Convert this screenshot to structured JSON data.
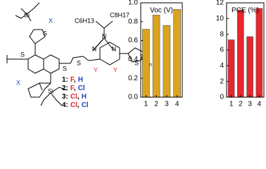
{
  "structure": {
    "labels": [
      "Si",
      "X",
      "Si",
      "X",
      "S",
      "S",
      "S",
      "S",
      "S",
      "N",
      "N",
      "N",
      "Y",
      "Y",
      "C8H17",
      "C6H13",
      "n"
    ],
    "compounds": [
      {
        "number": "1:",
        "y": "F",
        "sep": ",",
        "x": "H"
      },
      {
        "number": "2:",
        "y": "F",
        "sep": ",",
        "x": "Cl"
      },
      {
        "number": "3:",
        "y": "Cl",
        "sep": ",",
        "x": "H"
      },
      {
        "number": "4:",
        "y": "Cl",
        "sep": ",",
        "x": "Cl"
      }
    ]
  },
  "chart_data": [
    {
      "type": "bar",
      "title": "Voc (V)",
      "categories": [
        "1",
        "2",
        "3",
        "4"
      ],
      "values": [
        0.72,
        0.87,
        0.76,
        0.93
      ],
      "color": "#dba41f",
      "ylim": [
        0,
        1
      ],
      "yticks": [
        {
          "value": 0,
          "label": "0.0"
        },
        0.2,
        0.4,
        0.6,
        0.8,
        {
          "value": 1,
          "label": "1.0"
        }
      ]
    },
    {
      "type": "bar",
      "title": "PCE (%)",
      "categories": [
        "1",
        "2",
        "3",
        "4"
      ],
      "values": [
        7.3,
        11.1,
        7.7,
        11.3
      ],
      "color": "#e8262c",
      "ylim": [
        0,
        12
      ],
      "yticks": [
        0,
        2,
        4,
        6,
        8,
        10,
        12
      ]
    }
  ]
}
